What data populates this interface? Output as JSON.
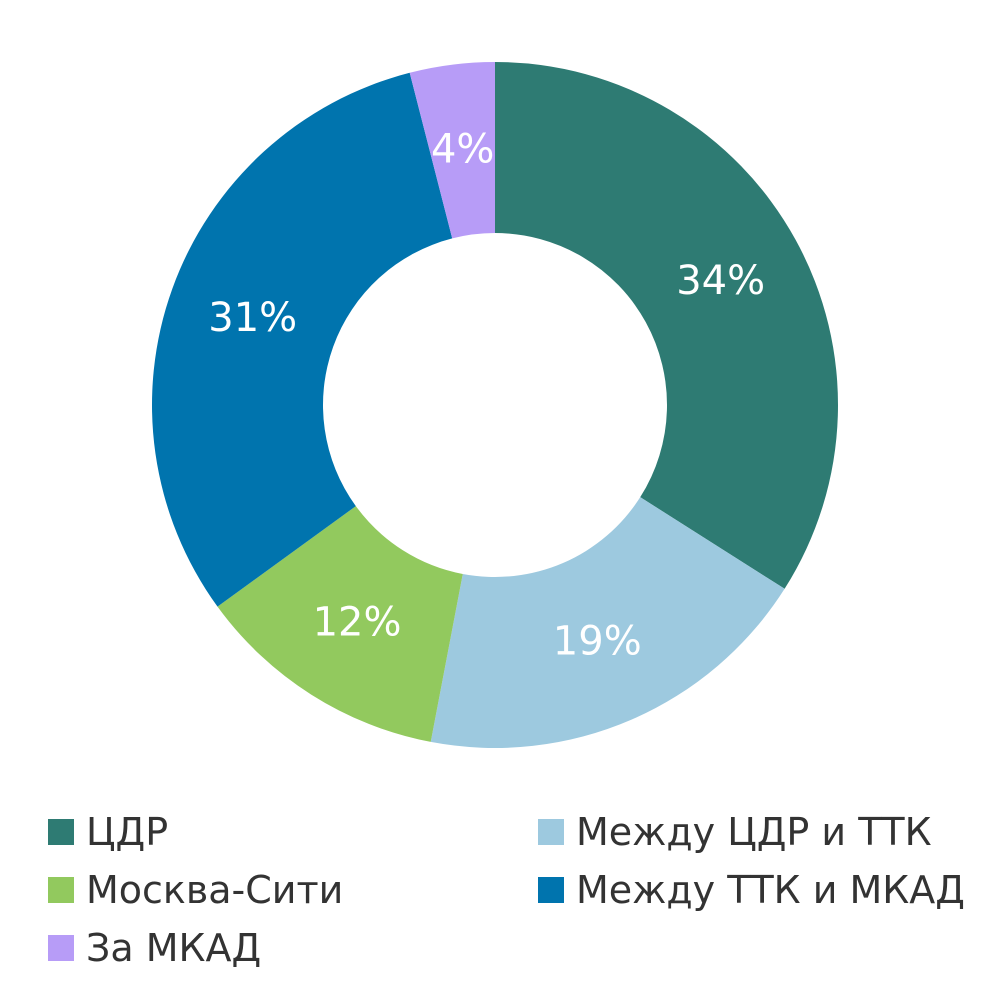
{
  "chart_data": {
    "type": "pie",
    "donut": true,
    "categories": [
      "ЦДР",
      "Между ЦДР и ТТК",
      "Москва-Сити",
      "Между ТТК и МКАД",
      "За МКАД"
    ],
    "values": [
      34,
      19,
      12,
      31,
      4
    ],
    "labels": [
      "34%",
      "19%",
      "12%",
      "31%",
      "4%"
    ],
    "colors": [
      "#2E7B73",
      "#9DC9DF",
      "#92C95E",
      "#0074AE",
      "#B79CF7"
    ],
    "legend_position": "bottom"
  }
}
